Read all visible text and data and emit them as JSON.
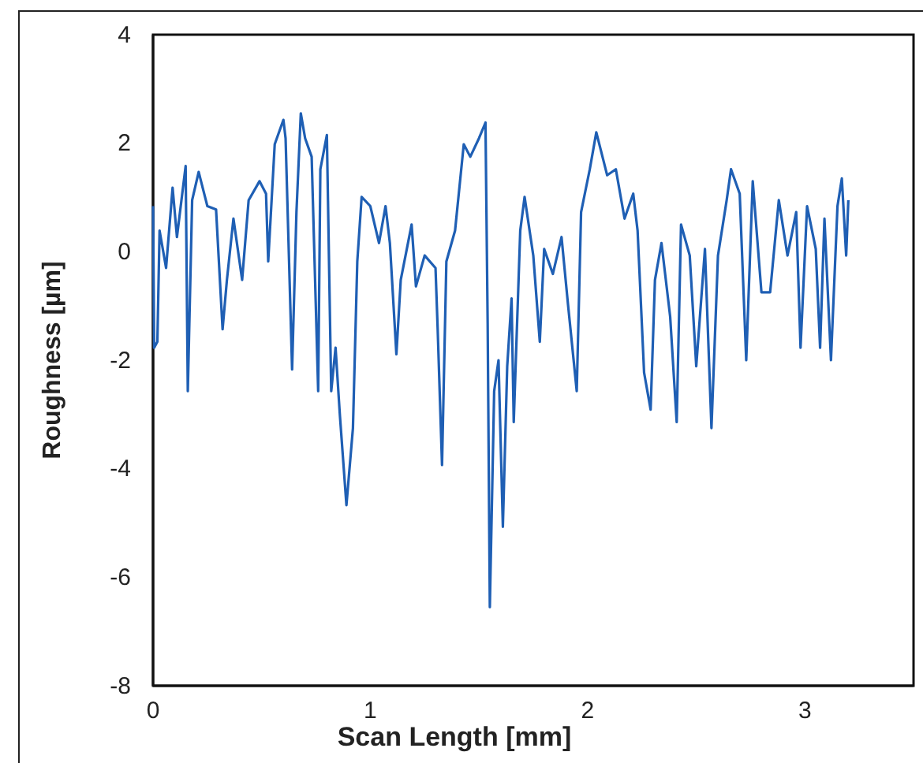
{
  "chart_data": {
    "type": "line",
    "xlabel": "Scan Length [mm]",
    "ylabel": "Roughness [µm]",
    "xlim": [
      0,
      3.5
    ],
    "xticks": [
      0,
      1,
      2,
      3
    ],
    "ylim": [
      -8,
      4
    ],
    "yticks": [
      -8,
      -6,
      -4,
      -2,
      0,
      2,
      4
    ],
    "grid": false,
    "marker": "none",
    "line_style": "solid",
    "series": [
      {
        "color": "#1f5fb4",
        "x": [
          0,
          0.005,
          0.02,
          0.03,
          0.06,
          0.09,
          0.11,
          0.15,
          0.16,
          0.18,
          0.21,
          0.25,
          0.29,
          0.32,
          0.34,
          0.37,
          0.41,
          0.44,
          0.49,
          0.52,
          0.53,
          0.56,
          0.6,
          0.61,
          0.64,
          0.66,
          0.68,
          0.7,
          0.73,
          0.76,
          0.77,
          0.8,
          0.82,
          0.84,
          0.86,
          0.89,
          0.92,
          0.94,
          0.96,
          1.0,
          1.04,
          1.07,
          1.09,
          1.12,
          1.14,
          1.19,
          1.21,
          1.25,
          1.3,
          1.31,
          1.33,
          1.35,
          1.39,
          1.43,
          1.46,
          1.5,
          1.53,
          1.54,
          1.55,
          1.57,
          1.59,
          1.61,
          1.63,
          1.65,
          1.66,
          1.69,
          1.71,
          1.75,
          1.78,
          1.8,
          1.84,
          1.88,
          1.91,
          1.95,
          1.97,
          2.01,
          2.04,
          2.09,
          2.13,
          2.17,
          2.21,
          2.23,
          2.26,
          2.29,
          2.31,
          2.34,
          2.38,
          2.41,
          2.43,
          2.47,
          2.5,
          2.54,
          2.57,
          2.6,
          2.64,
          2.66,
          2.7,
          2.73,
          2.76,
          2.8,
          2.84,
          2.88,
          2.92,
          2.96,
          2.98,
          3.01,
          3.05,
          3.07,
          3.09,
          3.12,
          3.15,
          3.17,
          3.19,
          3.2
        ],
        "values": [
          0.84,
          -1.77,
          -1.66,
          0.39,
          -0.3,
          1.18,
          0.27,
          1.58,
          -2.57,
          0.95,
          1.47,
          0.84,
          0.78,
          -1.43,
          -0.52,
          0.61,
          -0.52,
          0.95,
          1.3,
          1.07,
          -0.18,
          1.98,
          2.43,
          2.09,
          -2.17,
          0.73,
          2.55,
          2.09,
          1.75,
          -2.57,
          1.52,
          2.15,
          -2.57,
          -1.77,
          -3.02,
          -4.67,
          -3.25,
          -0.18,
          1.01,
          0.84,
          0.16,
          0.84,
          0.16,
          -1.89,
          -0.52,
          0.5,
          -0.64,
          -0.07,
          -0.3,
          -1.43,
          -3.93,
          -0.18,
          0.39,
          1.98,
          1.75,
          2.09,
          2.38,
          -1.32,
          -6.55,
          -2.57,
          -2.0,
          -5.07,
          -2.11,
          -0.86,
          -3.14,
          0.39,
          1.01,
          -0.07,
          -1.66,
          0.05,
          -0.41,
          0.27,
          -0.98,
          -2.57,
          0.73,
          1.52,
          2.2,
          1.41,
          1.52,
          0.61,
          1.07,
          0.39,
          -2.23,
          -2.91,
          -0.52,
          0.16,
          -1.2,
          -3.14,
          0.5,
          -0.07,
          -2.11,
          0.05,
          -3.25,
          -0.07,
          0.95,
          1.52,
          1.07,
          -2.0,
          1.3,
          -0.75,
          -0.75,
          0.95,
          -0.07,
          0.73,
          -1.77,
          0.84,
          0.05,
          -1.77,
          0.61,
          -2.0,
          0.84,
          1.35,
          -0.07,
          0.95
        ]
      }
    ]
  }
}
